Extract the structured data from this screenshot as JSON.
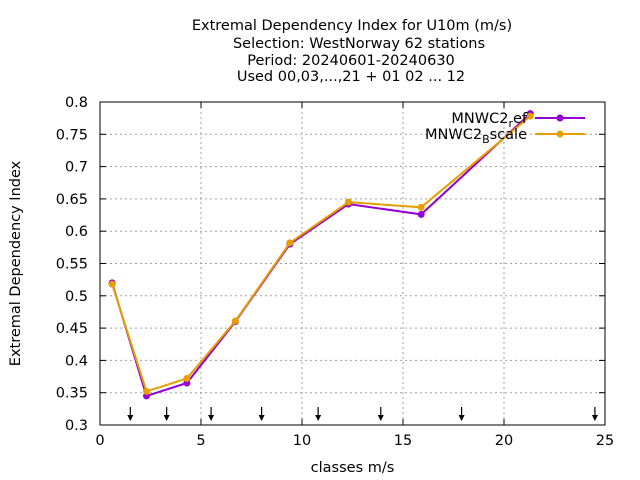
{
  "chart_data": {
    "type": "line",
    "title_lines": [
      "Extremal Dependency Index  for U10m (m/s)",
      "Selection: WestNorway     62 stations",
      "Period: 20240601-20240630",
      "Used 00,03,...,21 + 01 02 ... 12"
    ],
    "xlabel": "classes m/s",
    "ylabel": "Extremal Dependency Index",
    "xlim": [
      0,
      25
    ],
    "ylim": [
      0.3,
      0.8
    ],
    "xticks": [
      0,
      5,
      10,
      15,
      20,
      25
    ],
    "yticks": [
      0.3,
      0.35,
      0.4,
      0.45,
      0.5,
      0.55,
      0.6,
      0.65,
      0.7,
      0.75,
      0.8
    ],
    "grid": true,
    "legend_position": "top-right",
    "class_limits": [
      1.5,
      3.3,
      5.5,
      8,
      10.8,
      13.9,
      17.9,
      24.5
    ],
    "series": [
      {
        "name_main": "MNWC2",
        "name_sub": "r",
        "name_rest": "ef",
        "color": "#9400d3",
        "x": [
          0.6,
          2.3,
          4.3,
          6.7,
          9.4,
          12.3,
          15.9,
          21.3
        ],
        "y": [
          0.52,
          0.345,
          0.365,
          0.46,
          0.58,
          0.642,
          0.626,
          0.782
        ]
      },
      {
        "name_main": "MNWC2",
        "name_sub": "B",
        "name_rest": "scale",
        "color": "#e69f00",
        "x": [
          0.6,
          2.3,
          4.3,
          6.7,
          9.4,
          12.3,
          15.9,
          21.3
        ],
        "y": [
          0.518,
          0.352,
          0.372,
          0.461,
          0.582,
          0.645,
          0.637,
          0.778
        ]
      }
    ]
  }
}
